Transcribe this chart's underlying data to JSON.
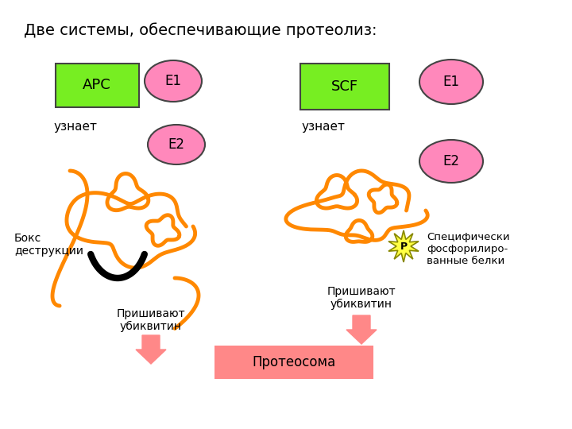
{
  "title": "Две системы, обеспечивающие протеолиз:",
  "title_fontsize": 14,
  "background_color": "#ffffff",
  "green_box_color": "#77ee22",
  "pink_ellipse_color": "#ff88bb",
  "pink_box_color": "#ff8888",
  "orange_color": "#ff8800",
  "black_color": "#000000",
  "yellow_star_color": "#ffff44",
  "labels": {
    "apc": "АРС",
    "scf": "SCF",
    "e1_left": "Е1",
    "e2_left": "Е2",
    "e1_right": "Е1",
    "e2_right": "Е2",
    "uznaet_left": "узнает",
    "uznaet_right": "узнает",
    "boks": "Бокс\nдеструкции",
    "prishivayut_left": "Пришивают\nубиквитин",
    "prishivayut_right": "Пришивают\nубиквитин",
    "proteosoma": "Протеосома",
    "specificheski": "Специфически\nфосфорилиро-\nванные белки",
    "p": "Р"
  }
}
